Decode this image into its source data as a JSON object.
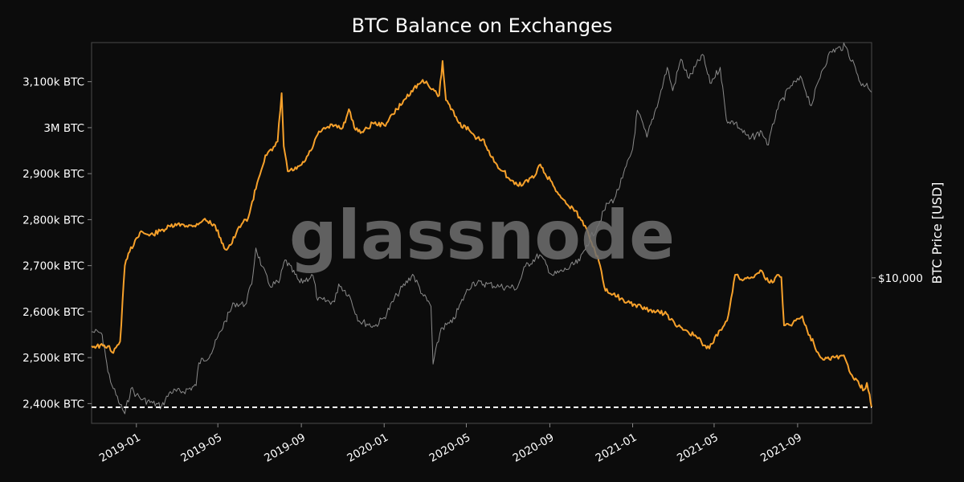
{
  "chart_data": {
    "type": "line",
    "title": "BTC Balance on Exchanges",
    "watermark": "glassnode",
    "ylabel_left": "",
    "ylabel_right": "BTC Price [USD]",
    "xlim": [
      "2018-10-27",
      "2021-12-19"
    ],
    "ylim_left": [
      2357000,
      3185000
    ],
    "ylim_right": [
      3000,
      70000
    ],
    "y_scale_right": "log",
    "left_ticks": [
      {
        "value": 2400000,
        "label": "2,400k BTC"
      },
      {
        "value": 2500000,
        "label": "2,500k BTC"
      },
      {
        "value": 2600000,
        "label": "2,600k BTC"
      },
      {
        "value": 2700000,
        "label": "2,700k BTC"
      },
      {
        "value": 2800000,
        "label": "2,800k BTC"
      },
      {
        "value": 2900000,
        "label": "2,900k BTC"
      },
      {
        "value": 3000000,
        "label": "3M BTC"
      },
      {
        "value": 3100000,
        "label": "3,100k BTC"
      }
    ],
    "right_ticks": [
      {
        "value": 10000,
        "label": "$10,000"
      }
    ],
    "x_ticks": [
      {
        "date": "2019-01-01",
        "label": "2019-01"
      },
      {
        "date": "2019-05-01",
        "label": "2019-05"
      },
      {
        "date": "2019-09-01",
        "label": "2019-09"
      },
      {
        "date": "2020-01-01",
        "label": "2020-01"
      },
      {
        "date": "2020-05-01",
        "label": "2020-05"
      },
      {
        "date": "2020-09-01",
        "label": "2020-09"
      },
      {
        "date": "2021-01-01",
        "label": "2021-01"
      },
      {
        "date": "2021-05-01",
        "label": "2021-05"
      },
      {
        "date": "2021-09-01",
        "label": "2021-09"
      }
    ],
    "reference_line": {
      "value": 2392000,
      "style": "dashed",
      "color": "#ffffff"
    },
    "series": [
      {
        "axis": "left",
        "color": "#f7a12b",
        "points": [
          [
            "2018-10-27",
            2525000
          ],
          [
            "2018-11-20",
            2525000
          ],
          [
            "2018-11-28",
            2510000
          ],
          [
            "2018-12-08",
            2535000
          ],
          [
            "2018-12-15",
            2700000
          ],
          [
            "2018-12-22",
            2730000
          ],
          [
            "2019-01-01",
            2760000
          ],
          [
            "2019-01-08",
            2775000
          ],
          [
            "2019-01-20",
            2765000
          ],
          [
            "2019-02-05",
            2775000
          ],
          [
            "2019-02-20",
            2785000
          ],
          [
            "2019-03-10",
            2790000
          ],
          [
            "2019-03-25",
            2785000
          ],
          [
            "2019-04-10",
            2800000
          ],
          [
            "2019-04-25",
            2790000
          ],
          [
            "2019-05-05",
            2760000
          ],
          [
            "2019-05-12",
            2735000
          ],
          [
            "2019-05-20",
            2745000
          ],
          [
            "2019-05-28",
            2770000
          ],
          [
            "2019-06-05",
            2790000
          ],
          [
            "2019-06-15",
            2805000
          ],
          [
            "2019-06-28",
            2880000
          ],
          [
            "2019-07-10",
            2940000
          ],
          [
            "2019-07-20",
            2950000
          ],
          [
            "2019-07-28",
            2970000
          ],
          [
            "2019-08-03",
            3075000
          ],
          [
            "2019-08-06",
            2960000
          ],
          [
            "2019-08-12",
            2905000
          ],
          [
            "2019-08-25",
            2910000
          ],
          [
            "2019-09-05",
            2925000
          ],
          [
            "2019-09-15",
            2950000
          ],
          [
            "2019-09-25",
            2985000
          ],
          [
            "2019-10-08",
            3000000
          ],
          [
            "2019-10-20",
            3005000
          ],
          [
            "2019-11-01",
            3000000
          ],
          [
            "2019-11-10",
            3040000
          ],
          [
            "2019-11-18",
            3000000
          ],
          [
            "2019-12-01",
            2990000
          ],
          [
            "2019-12-15",
            3010000
          ],
          [
            "2020-01-01",
            3005000
          ],
          [
            "2020-01-20",
            3040000
          ],
          [
            "2020-02-10",
            3080000
          ],
          [
            "2020-02-25",
            3100000
          ],
          [
            "2020-03-05",
            3095000
          ],
          [
            "2020-03-15",
            3080000
          ],
          [
            "2020-03-22",
            3070000
          ],
          [
            "2020-03-27",
            3145000
          ],
          [
            "2020-04-01",
            3060000
          ],
          [
            "2020-04-10",
            3040000
          ],
          [
            "2020-04-20",
            3010000
          ],
          [
            "2020-05-05",
            2995000
          ],
          [
            "2020-05-15",
            2975000
          ],
          [
            "2020-05-25",
            2975000
          ],
          [
            "2020-06-05",
            2940000
          ],
          [
            "2020-06-15",
            2920000
          ],
          [
            "2020-06-25",
            2905000
          ],
          [
            "2020-07-05",
            2885000
          ],
          [
            "2020-07-15",
            2875000
          ],
          [
            "2020-07-25",
            2880000
          ],
          [
            "2020-08-10",
            2895000
          ],
          [
            "2020-08-18",
            2920000
          ],
          [
            "2020-08-25",
            2900000
          ],
          [
            "2020-09-02",
            2885000
          ],
          [
            "2020-09-12",
            2860000
          ],
          [
            "2020-09-25",
            2835000
          ],
          [
            "2020-10-05",
            2825000
          ],
          [
            "2020-10-15",
            2805000
          ],
          [
            "2020-10-25",
            2780000
          ],
          [
            "2020-11-05",
            2740000
          ],
          [
            "2020-11-12",
            2710000
          ],
          [
            "2020-11-22",
            2645000
          ],
          [
            "2020-12-05",
            2640000
          ],
          [
            "2020-12-20",
            2620000
          ],
          [
            "2021-01-05",
            2615000
          ],
          [
            "2021-01-20",
            2605000
          ],
          [
            "2021-02-05",
            2600000
          ],
          [
            "2021-02-20",
            2595000
          ],
          [
            "2021-03-05",
            2570000
          ],
          [
            "2021-03-20",
            2560000
          ],
          [
            "2021-04-05",
            2545000
          ],
          [
            "2021-04-20",
            2520000
          ],
          [
            "2021-04-28",
            2530000
          ],
          [
            "2021-05-10",
            2560000
          ],
          [
            "2021-05-20",
            2580000
          ],
          [
            "2021-06-01",
            2680000
          ],
          [
            "2021-06-10",
            2670000
          ],
          [
            "2021-06-25",
            2675000
          ],
          [
            "2021-07-08",
            2690000
          ],
          [
            "2021-07-20",
            2665000
          ],
          [
            "2021-07-28",
            2665000
          ],
          [
            "2021-08-02",
            2680000
          ],
          [
            "2021-08-08",
            2675000
          ],
          [
            "2021-08-12",
            2570000
          ],
          [
            "2021-08-25",
            2575000
          ],
          [
            "2021-09-08",
            2590000
          ],
          [
            "2021-09-15",
            2560000
          ],
          [
            "2021-09-25",
            2530000
          ],
          [
            "2021-10-05",
            2500000
          ],
          [
            "2021-10-25",
            2500000
          ],
          [
            "2021-11-08",
            2505000
          ],
          [
            "2021-11-18",
            2465000
          ],
          [
            "2021-12-01",
            2440000
          ],
          [
            "2021-12-08",
            2430000
          ],
          [
            "2021-12-12",
            2445000
          ],
          [
            "2021-12-16",
            2420000
          ],
          [
            "2021-12-19",
            2392000
          ]
        ]
      },
      {
        "axis": "right",
        "color": "#8a8a8a",
        "points": [
          [
            "2018-10-27",
            6400
          ],
          [
            "2018-11-10",
            6350
          ],
          [
            "2018-11-15",
            5600
          ],
          [
            "2018-11-20",
            4600
          ],
          [
            "2018-11-28",
            4000
          ],
          [
            "2018-12-08",
            3500
          ],
          [
            "2018-12-15",
            3250
          ],
          [
            "2018-12-24",
            4000
          ],
          [
            "2019-01-01",
            3800
          ],
          [
            "2019-01-10",
            3650
          ],
          [
            "2019-01-25",
            3550
          ],
          [
            "2019-02-07",
            3450
          ],
          [
            "2019-02-20",
            3900
          ],
          [
            "2019-03-10",
            3900
          ],
          [
            "2019-03-30",
            4100
          ],
          [
            "2019-04-03",
            4950
          ],
          [
            "2019-04-20",
            5300
          ],
          [
            "2019-05-12",
            7000
          ],
          [
            "2019-05-25",
            8100
          ],
          [
            "2019-06-10",
            8000
          ],
          [
            "2019-06-20",
            9500
          ],
          [
            "2019-06-26",
            12800
          ],
          [
            "2019-07-05",
            11000
          ],
          [
            "2019-07-16",
            9400
          ],
          [
            "2019-07-30",
            9600
          ],
          [
            "2019-08-08",
            11600
          ],
          [
            "2019-08-30",
            9600
          ],
          [
            "2019-09-18",
            10200
          ],
          [
            "2019-09-25",
            8300
          ],
          [
            "2019-10-20",
            8200
          ],
          [
            "2019-10-26",
            9500
          ],
          [
            "2019-11-10",
            8700
          ],
          [
            "2019-11-25",
            7000
          ],
          [
            "2019-12-18",
            6700
          ],
          [
            "2020-01-01",
            7200
          ],
          [
            "2020-01-20",
            8700
          ],
          [
            "2020-02-12",
            10300
          ],
          [
            "2020-02-28",
            8600
          ],
          [
            "2020-03-10",
            7900
          ],
          [
            "2020-03-13",
            4900
          ],
          [
            "2020-03-25",
            6600
          ],
          [
            "2020-04-10",
            6900
          ],
          [
            "2020-04-30",
            8800
          ],
          [
            "2020-05-10",
            9600
          ],
          [
            "2020-06-01",
            9500
          ],
          [
            "2020-06-20",
            9300
          ],
          [
            "2020-07-15",
            9200
          ],
          [
            "2020-07-27",
            11000
          ],
          [
            "2020-08-17",
            12100
          ],
          [
            "2020-09-05",
            10200
          ],
          [
            "2020-09-25",
            10700
          ],
          [
            "2020-10-15",
            11500
          ],
          [
            "2020-10-25",
            13100
          ],
          [
            "2020-11-10",
            15300
          ],
          [
            "2020-11-25",
            18500
          ],
          [
            "2020-12-05",
            19200
          ],
          [
            "2020-12-17",
            22800
          ],
          [
            "2021-01-01",
            29000
          ],
          [
            "2021-01-08",
            40000
          ],
          [
            "2021-01-22",
            32000
          ],
          [
            "2021-02-10",
            45000
          ],
          [
            "2021-02-21",
            57000
          ],
          [
            "2021-03-01",
            47000
          ],
          [
            "2021-03-13",
            61000
          ],
          [
            "2021-03-25",
            52000
          ],
          [
            "2021-04-14",
            63500
          ],
          [
            "2021-04-25",
            50000
          ],
          [
            "2021-05-10",
            57000
          ],
          [
            "2021-05-19",
            37000
          ],
          [
            "2021-06-01",
            36000
          ],
          [
            "2021-06-22",
            31500
          ],
          [
            "2021-07-10",
            33500
          ],
          [
            "2021-07-20",
            30000
          ],
          [
            "2021-08-01",
            40000
          ],
          [
            "2021-08-22",
            49000
          ],
          [
            "2021-09-07",
            52000
          ],
          [
            "2021-09-21",
            41500
          ],
          [
            "2021-10-06",
            55000
          ],
          [
            "2021-10-20",
            65000
          ],
          [
            "2021-11-10",
            68000
          ],
          [
            "2021-11-25",
            57000
          ],
          [
            "2021-12-04",
            49000
          ],
          [
            "2021-12-12",
            50000
          ],
          [
            "2021-12-19",
            46500
          ]
        ]
      }
    ]
  }
}
